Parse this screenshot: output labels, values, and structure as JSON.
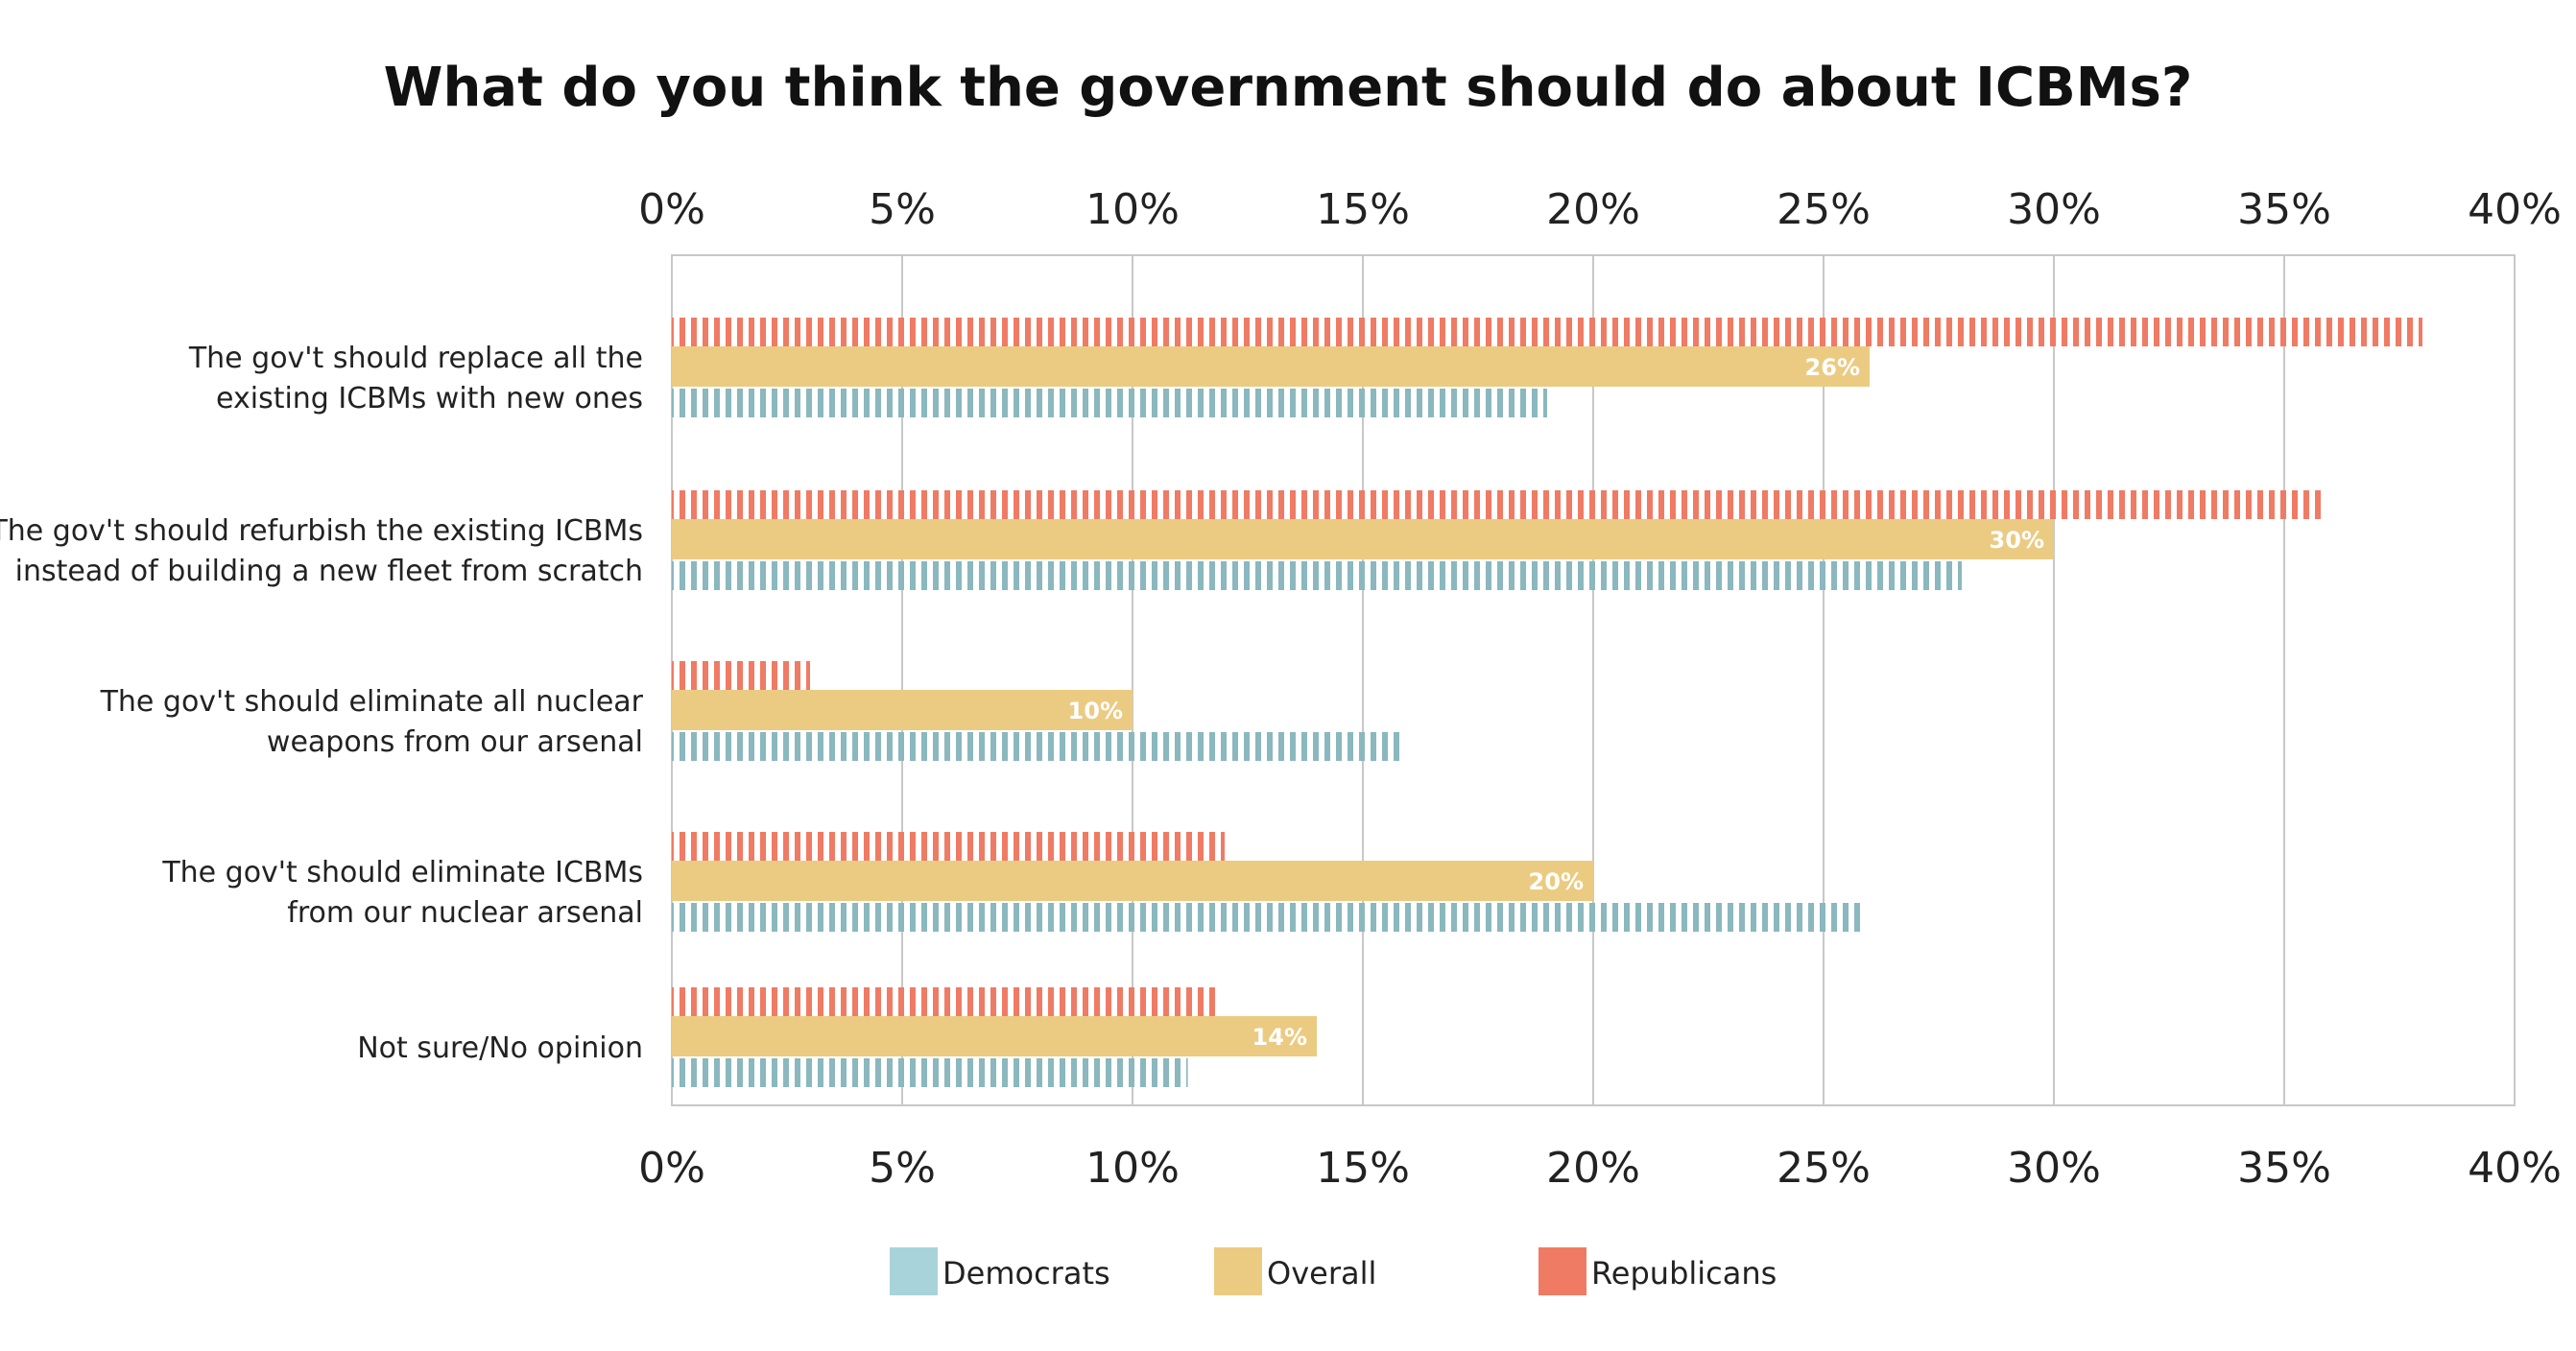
{
  "chart_data": {
    "type": "bar",
    "orientation": "horizontal",
    "title": "What do you think the government should do about ICBMs?",
    "categories": [
      [
        "The gov't should replace all the",
        "existing ICBMs with new ones"
      ],
      [
        "The gov't should refurbish the existing ICBMs",
        "instead of building a new fleet from scratch"
      ],
      [
        "The gov't should eliminate all nuclear",
        "weapons from our arsenal"
      ],
      [
        "The gov't should eliminate ICBMs",
        "from our nuclear arsenal"
      ],
      [
        "Not sure/No opinion"
      ]
    ],
    "series": [
      {
        "name": "Republicans",
        "color": "#ef7b65",
        "style": "striped",
        "values": [
          38,
          35.8,
          3,
          12,
          11.9
        ]
      },
      {
        "name": "Overall",
        "color": "#ebcb82",
        "style": "solid",
        "values": [
          26,
          30,
          10,
          20,
          14
        ],
        "labels": [
          "26%",
          "30%",
          "10%",
          "20%",
          "14%"
        ]
      },
      {
        "name": "Democrats",
        "color": "#8ab8be",
        "style": "striped",
        "values": [
          19,
          28,
          15.9,
          25.8,
          11.2
        ]
      }
    ],
    "legend": [
      {
        "name": "Democrats",
        "color": "#a9d3db"
      },
      {
        "name": "Overall",
        "color": "#ebcb82"
      },
      {
        "name": "Republicans",
        "color": "#ef7b65"
      }
    ],
    "xlim": [
      0,
      40
    ],
    "x_ticks": [
      0,
      5,
      10,
      15,
      20,
      25,
      30,
      35,
      40
    ],
    "x_tick_labels": [
      "0%",
      "5%",
      "10%",
      "15%",
      "20%",
      "25%",
      "30%",
      "35%",
      "40%"
    ],
    "axis_labels_top_and_bottom": true,
    "grid": true,
    "legend_position": "bottom"
  }
}
